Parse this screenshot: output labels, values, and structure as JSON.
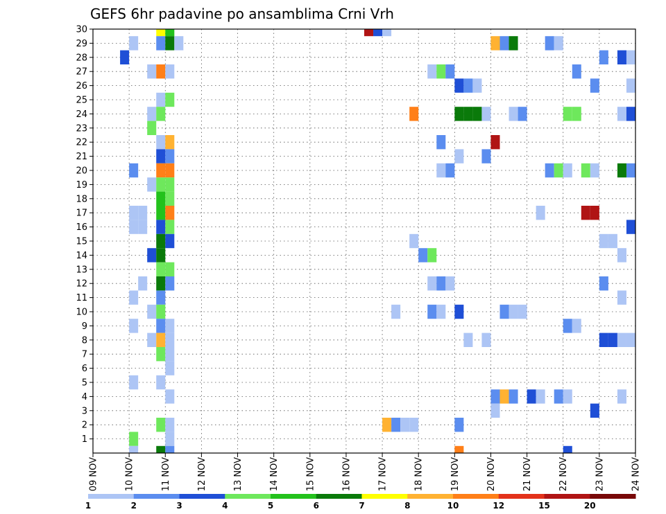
{
  "chart_data": {
    "type": "heatmap",
    "title": "GEFS 6hr padavine po ansamblima Crni Vrh",
    "xlabel": "",
    "ylabel": "",
    "y_range": [
      0,
      30
    ],
    "y_ticks": [
      "1",
      "2",
      "3",
      "4",
      "5",
      "6",
      "7",
      "8",
      "9",
      "10",
      "11",
      "12",
      "13",
      "14",
      "15",
      "16",
      "17",
      "18",
      "19",
      "20",
      "21",
      "22",
      "23",
      "24",
      "25",
      "26",
      "27",
      "28",
      "29",
      "30"
    ],
    "x_range": [
      0,
      15
    ],
    "x_ticks": [
      "09 NOV",
      "10 NOV",
      "11 NOV",
      "12 NOV",
      "13 NOV",
      "14 NOV",
      "15 NOV",
      "16 NOV",
      "17 NOV",
      "18 NOV",
      "19 NOV",
      "20 NOV",
      "21 NOV",
      "22 NOV",
      "23 NOV",
      "24 NOV"
    ],
    "grid": true,
    "legend_placement": "bottom",
    "legend": {
      "labels": [
        "1",
        "2",
        "3",
        "4",
        "5",
        "6",
        "7",
        "8",
        "10",
        "12",
        "15",
        "20"
      ],
      "colors": [
        "#adc5f5",
        "#5b8def",
        "#1f4fd6",
        "#6ee85c",
        "#23c21c",
        "#0a7a0a",
        "#ffff00",
        "#ffb232",
        "#ff7f18",
        "#e3321a",
        "#b01414",
        "#780808"
      ]
    },
    "cells": [
      {
        "m": 30,
        "d": 1.75,
        "v": 7
      },
      {
        "m": 30,
        "d": 2.0,
        "v": 5
      },
      {
        "m": 30,
        "d": 7.5,
        "v": 15
      },
      {
        "m": 30,
        "d": 7.75,
        "v": 3
      },
      {
        "m": 30,
        "d": 8.0,
        "v": 1
      },
      {
        "m": 29,
        "d": 1.0,
        "v": 1
      },
      {
        "m": 29,
        "d": 1.75,
        "v": 2
      },
      {
        "m": 29,
        "d": 2.0,
        "v": 6
      },
      {
        "m": 29,
        "d": 2.25,
        "v": 1
      },
      {
        "m": 29,
        "d": 11.0,
        "v": 8
      },
      {
        "m": 29,
        "d": 11.25,
        "v": 2
      },
      {
        "m": 29,
        "d": 11.5,
        "v": 6
      },
      {
        "m": 29,
        "d": 12.5,
        "v": 2
      },
      {
        "m": 29,
        "d": 12.75,
        "v": 1
      },
      {
        "m": 28,
        "d": 0.75,
        "v": 3
      },
      {
        "m": 28,
        "d": 14.0,
        "v": 2
      },
      {
        "m": 28,
        "d": 14.5,
        "v": 3
      },
      {
        "m": 28,
        "d": 14.75,
        "v": 1
      },
      {
        "m": 27,
        "d": 1.5,
        "v": 1
      },
      {
        "m": 27,
        "d": 1.75,
        "v": 10
      },
      {
        "m": 27,
        "d": 2.0,
        "v": 1
      },
      {
        "m": 27,
        "d": 9.25,
        "v": 1
      },
      {
        "m": 27,
        "d": 9.5,
        "v": 4
      },
      {
        "m": 27,
        "d": 9.75,
        "v": 2
      },
      {
        "m": 27,
        "d": 13.25,
        "v": 2
      },
      {
        "m": 26,
        "d": 10.0,
        "v": 3
      },
      {
        "m": 26,
        "d": 10.25,
        "v": 2
      },
      {
        "m": 26,
        "d": 10.5,
        "v": 1
      },
      {
        "m": 26,
        "d": 13.75,
        "v": 2
      },
      {
        "m": 26,
        "d": 14.75,
        "v": 1
      },
      {
        "m": 25,
        "d": 1.75,
        "v": 1
      },
      {
        "m": 25,
        "d": 2.0,
        "v": 4
      },
      {
        "m": 24,
        "d": 1.5,
        "v": 1
      },
      {
        "m": 24,
        "d": 1.75,
        "v": 4
      },
      {
        "m": 24,
        "d": 8.75,
        "v": 10
      },
      {
        "m": 24,
        "d": 10.0,
        "v": 6
      },
      {
        "m": 24,
        "d": 10.25,
        "v": 6
      },
      {
        "m": 24,
        "d": 10.5,
        "v": 6
      },
      {
        "m": 24,
        "d": 10.75,
        "v": 1
      },
      {
        "m": 24,
        "d": 11.5,
        "v": 1
      },
      {
        "m": 24,
        "d": 11.75,
        "v": 2
      },
      {
        "m": 24,
        "d": 13.0,
        "v": 4
      },
      {
        "m": 24,
        "d": 13.25,
        "v": 4
      },
      {
        "m": 24,
        "d": 14.5,
        "v": 1
      },
      {
        "m": 24,
        "d": 14.75,
        "v": 3
      },
      {
        "m": 23,
        "d": 1.5,
        "v": 4
      },
      {
        "m": 22,
        "d": 1.75,
        "v": 1
      },
      {
        "m": 22,
        "d": 2.0,
        "v": 8
      },
      {
        "m": 22,
        "d": 9.5,
        "v": 2
      },
      {
        "m": 22,
        "d": 11.0,
        "v": 20
      },
      {
        "m": 21,
        "d": 1.75,
        "v": 3
      },
      {
        "m": 21,
        "d": 2.0,
        "v": 2
      },
      {
        "m": 21,
        "d": 10.0,
        "v": 1
      },
      {
        "m": 21,
        "d": 10.75,
        "v": 2
      },
      {
        "m": 20,
        "d": 1.0,
        "v": 2
      },
      {
        "m": 20,
        "d": 1.75,
        "v": 10
      },
      {
        "m": 20,
        "d": 2.0,
        "v": 10
      },
      {
        "m": 20,
        "d": 9.5,
        "v": 1
      },
      {
        "m": 20,
        "d": 9.75,
        "v": 2
      },
      {
        "m": 20,
        "d": 12.5,
        "v": 2
      },
      {
        "m": 20,
        "d": 12.75,
        "v": 4
      },
      {
        "m": 20,
        "d": 13.0,
        "v": 1
      },
      {
        "m": 20,
        "d": 13.5,
        "v": 4
      },
      {
        "m": 20,
        "d": 13.75,
        "v": 1
      },
      {
        "m": 20,
        "d": 14.5,
        "v": 6
      },
      {
        "m": 20,
        "d": 14.75,
        "v": 2
      },
      {
        "m": 19,
        "d": 1.5,
        "v": 1
      },
      {
        "m": 19,
        "d": 1.75,
        "v": 4
      },
      {
        "m": 19,
        "d": 2.0,
        "v": 4
      },
      {
        "m": 18,
        "d": 1.75,
        "v": 5
      },
      {
        "m": 18,
        "d": 2.0,
        "v": 4
      },
      {
        "m": 17,
        "d": 1.0,
        "v": 1
      },
      {
        "m": 17,
        "d": 1.25,
        "v": 1
      },
      {
        "m": 17,
        "d": 1.75,
        "v": 5
      },
      {
        "m": 17,
        "d": 2.0,
        "v": 10
      },
      {
        "m": 17,
        "d": 12.25,
        "v": 1
      },
      {
        "m": 17,
        "d": 13.5,
        "v": 20
      },
      {
        "m": 17,
        "d": 13.75,
        "v": 20
      },
      {
        "m": 16,
        "d": 1.0,
        "v": 1
      },
      {
        "m": 16,
        "d": 1.25,
        "v": 1
      },
      {
        "m": 16,
        "d": 1.75,
        "v": 3
      },
      {
        "m": 16,
        "d": 2.0,
        "v": 4
      },
      {
        "m": 16,
        "d": 14.75,
        "v": 3
      },
      {
        "m": 15,
        "d": 1.75,
        "v": 6
      },
      {
        "m": 15,
        "d": 2.0,
        "v": 3
      },
      {
        "m": 15,
        "d": 8.75,
        "v": 1
      },
      {
        "m": 15,
        "d": 14.0,
        "v": 1
      },
      {
        "m": 15,
        "d": 14.25,
        "v": 1
      },
      {
        "m": 14,
        "d": 1.5,
        "v": 3
      },
      {
        "m": 14,
        "d": 1.75,
        "v": 6
      },
      {
        "m": 14,
        "d": 9.0,
        "v": 2
      },
      {
        "m": 14,
        "d": 9.25,
        "v": 4
      },
      {
        "m": 14,
        "d": 14.5,
        "v": 1
      },
      {
        "m": 13,
        "d": 1.75,
        "v": 4
      },
      {
        "m": 13,
        "d": 2.0,
        "v": 4
      },
      {
        "m": 12,
        "d": 1.25,
        "v": 1
      },
      {
        "m": 12,
        "d": 1.75,
        "v": 6
      },
      {
        "m": 12,
        "d": 2.0,
        "v": 2
      },
      {
        "m": 12,
        "d": 9.25,
        "v": 1
      },
      {
        "m": 12,
        "d": 9.5,
        "v": 2
      },
      {
        "m": 12,
        "d": 9.75,
        "v": 1
      },
      {
        "m": 12,
        "d": 14.0,
        "v": 2
      },
      {
        "m": 11,
        "d": 1.0,
        "v": 1
      },
      {
        "m": 11,
        "d": 1.75,
        "v": 2
      },
      {
        "m": 11,
        "d": 14.5,
        "v": 1
      },
      {
        "m": 10,
        "d": 1.5,
        "v": 1
      },
      {
        "m": 10,
        "d": 1.75,
        "v": 4
      },
      {
        "m": 10,
        "d": 8.25,
        "v": 1
      },
      {
        "m": 10,
        "d": 9.25,
        "v": 2
      },
      {
        "m": 10,
        "d": 9.5,
        "v": 1
      },
      {
        "m": 10,
        "d": 10.0,
        "v": 3
      },
      {
        "m": 10,
        "d": 11.25,
        "v": 2
      },
      {
        "m": 10,
        "d": 11.5,
        "v": 1
      },
      {
        "m": 10,
        "d": 11.75,
        "v": 1
      },
      {
        "m": 9,
        "d": 1.0,
        "v": 1
      },
      {
        "m": 9,
        "d": 1.75,
        "v": 2
      },
      {
        "m": 9,
        "d": 2.0,
        "v": 1
      },
      {
        "m": 9,
        "d": 13.0,
        "v": 2
      },
      {
        "m": 9,
        "d": 13.25,
        "v": 1
      },
      {
        "m": 8,
        "d": 1.5,
        "v": 1
      },
      {
        "m": 8,
        "d": 1.75,
        "v": 8
      },
      {
        "m": 8,
        "d": 2.0,
        "v": 1
      },
      {
        "m": 8,
        "d": 10.25,
        "v": 1
      },
      {
        "m": 8,
        "d": 10.75,
        "v": 1
      },
      {
        "m": 8,
        "d": 14.0,
        "v": 3
      },
      {
        "m": 8,
        "d": 14.25,
        "v": 3
      },
      {
        "m": 8,
        "d": 14.5,
        "v": 1
      },
      {
        "m": 8,
        "d": 14.75,
        "v": 1
      },
      {
        "m": 7,
        "d": 1.75,
        "v": 4
      },
      {
        "m": 7,
        "d": 2.0,
        "v": 1
      },
      {
        "m": 6,
        "d": 2.0,
        "v": 1
      },
      {
        "m": 5,
        "d": 1.0,
        "v": 1
      },
      {
        "m": 5,
        "d": 1.75,
        "v": 1
      },
      {
        "m": 4,
        "d": 2.0,
        "v": 1
      },
      {
        "m": 4,
        "d": 11.0,
        "v": 2
      },
      {
        "m": 4,
        "d": 11.25,
        "v": 8
      },
      {
        "m": 4,
        "d": 11.5,
        "v": 2
      },
      {
        "m": 4,
        "d": 12.0,
        "v": 3
      },
      {
        "m": 4,
        "d": 12.25,
        "v": 1
      },
      {
        "m": 4,
        "d": 12.75,
        "v": 2
      },
      {
        "m": 4,
        "d": 13.0,
        "v": 1
      },
      {
        "m": 4,
        "d": 14.5,
        "v": 1
      },
      {
        "m": 3,
        "d": 11.0,
        "v": 1
      },
      {
        "m": 3,
        "d": 13.75,
        "v": 3
      },
      {
        "m": 2,
        "d": 1.75,
        "v": 4
      },
      {
        "m": 2,
        "d": 2.0,
        "v": 1
      },
      {
        "m": 2,
        "d": 8.0,
        "v": 8
      },
      {
        "m": 2,
        "d": 8.25,
        "v": 2
      },
      {
        "m": 2,
        "d": 8.5,
        "v": 1
      },
      {
        "m": 2,
        "d": 8.75,
        "v": 1
      },
      {
        "m": 2,
        "d": 10.0,
        "v": 2
      },
      {
        "m": 1,
        "d": 1.0,
        "v": 4
      },
      {
        "m": 1,
        "d": 2.0,
        "v": 1
      },
      {
        "m": 0,
        "d": 1.0,
        "v": 1
      },
      {
        "m": 0,
        "d": 1.75,
        "v": 6
      },
      {
        "m": 0,
        "d": 2.0,
        "v": 2
      },
      {
        "m": 0,
        "d": 10.0,
        "v": 10
      },
      {
        "m": 0,
        "d": 13.0,
        "v": 3
      }
    ]
  }
}
